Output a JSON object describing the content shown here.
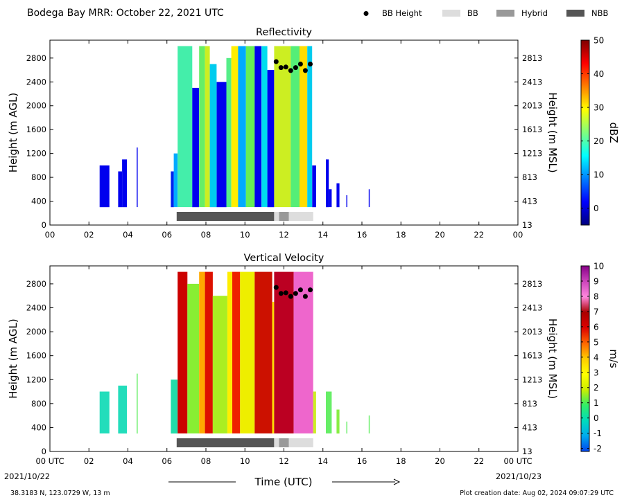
{
  "header": {
    "title": "Bodega Bay MRR:  October 22, 2021 UTC",
    "legend": [
      {
        "label": "BB Height",
        "kind": "dot",
        "color": "#000000"
      },
      {
        "label": "BB",
        "kind": "swatch",
        "color": "#dddddd"
      },
      {
        "label": "Hybrid",
        "kind": "swatch",
        "color": "#999999"
      },
      {
        "label": "NBB",
        "kind": "swatch",
        "color": "#555555"
      }
    ]
  },
  "footer": {
    "coords": "38.3183 N, 123.0729 W, 13 m",
    "created": "Plot creation date: Aug 02, 2024 09:07:29 UTC",
    "xlabel": "Time (UTC)",
    "start_date": "2021/10/22",
    "end_date": "2021/10/23"
  },
  "chart_data": [
    {
      "type": "heatmap",
      "title": "Reflectivity",
      "xlabel": "",
      "ylabel": "Height (m AGL)",
      "ylabel_right": "Height (m MSL)",
      "x_range_hours": [
        0,
        24
      ],
      "xticks": [
        "00",
        "02",
        "04",
        "06",
        "08",
        "10",
        "12",
        "14",
        "16",
        "18",
        "20",
        "22",
        "00"
      ],
      "ylim": [
        0,
        3100
      ],
      "yticks": [
        0,
        400,
        800,
        1200,
        1600,
        2000,
        2400,
        2800
      ],
      "yticks_right": [
        "13",
        "413",
        "813",
        "1213",
        "1613",
        "2013",
        "2413",
        "2813"
      ],
      "colorbar": {
        "label": "dBZ",
        "min": -5,
        "max": 50,
        "ticks": [
          0,
          10,
          20,
          30,
          40,
          50
        ],
        "colors": [
          "#00007f",
          "#0000ff",
          "#007fff",
          "#00ffff",
          "#7fff7f",
          "#ffff00",
          "#ff7f00",
          "#ff0000",
          "#7f0000"
        ]
      },
      "echo_columns": [
        {
          "start": 2.55,
          "end": 3.05,
          "top": 1000,
          "color": "#0000ee"
        },
        {
          "start": 3.5,
          "end": 3.7,
          "top": 900,
          "color": "#0000ee"
        },
        {
          "start": 3.7,
          "end": 3.95,
          "top": 1100,
          "color": "#0000ee"
        },
        {
          "start": 4.45,
          "end": 4.5,
          "top": 1300,
          "color": "#0000ee"
        },
        {
          "start": 6.2,
          "end": 6.35,
          "top": 900,
          "color": "#0022ee"
        },
        {
          "start": 6.35,
          "end": 6.55,
          "top": 1200,
          "color": "#00aaff"
        },
        {
          "start": 6.55,
          "end": 7.3,
          "top": 3000,
          "color": "#44eeaa"
        },
        {
          "start": 7.3,
          "end": 7.65,
          "top": 2300,
          "color": "#0000ee"
        },
        {
          "start": 7.65,
          "end": 7.95,
          "top": 3000,
          "color": "#66ee66"
        },
        {
          "start": 7.95,
          "end": 8.2,
          "top": 3000,
          "color": "#ccee22"
        },
        {
          "start": 8.2,
          "end": 8.55,
          "top": 2700,
          "color": "#00ccee"
        },
        {
          "start": 8.55,
          "end": 9.05,
          "top": 2400,
          "color": "#0000ee"
        },
        {
          "start": 9.05,
          "end": 9.3,
          "top": 2800,
          "color": "#55ee88"
        },
        {
          "start": 9.3,
          "end": 9.65,
          "top": 3000,
          "color": "#ffee00"
        },
        {
          "start": 9.65,
          "end": 10.05,
          "top": 3000,
          "color": "#00aaff"
        },
        {
          "start": 10.05,
          "end": 10.5,
          "top": 3000,
          "color": "#66ee55"
        },
        {
          "start": 10.5,
          "end": 10.85,
          "top": 3000,
          "color": "#0000ee"
        },
        {
          "start": 10.85,
          "end": 11.15,
          "top": 3000,
          "color": "#00ddee"
        },
        {
          "start": 11.15,
          "end": 11.5,
          "top": 2600,
          "color": "#0000ee"
        },
        {
          "start": 11.5,
          "end": 12.35,
          "top": 3000,
          "color": "#ccee22"
        },
        {
          "start": 12.35,
          "end": 12.8,
          "top": 3000,
          "color": "#55ee77"
        },
        {
          "start": 12.8,
          "end": 13.2,
          "top": 3000,
          "color": "#ffdd00"
        },
        {
          "start": 13.2,
          "end": 13.45,
          "top": 3000,
          "color": "#00ccee"
        },
        {
          "start": 13.45,
          "end": 13.65,
          "top": 1000,
          "color": "#0000ee"
        },
        {
          "start": 14.15,
          "end": 14.3,
          "top": 1100,
          "color": "#0000ee"
        },
        {
          "start": 14.3,
          "end": 14.45,
          "top": 600,
          "color": "#0000ee"
        },
        {
          "start": 14.7,
          "end": 14.85,
          "top": 700,
          "color": "#0000ee"
        },
        {
          "start": 15.2,
          "end": 15.25,
          "top": 500,
          "color": "#0000ee"
        },
        {
          "start": 16.35,
          "end": 16.4,
          "top": 600,
          "color": "#0000ee"
        }
      ]
    },
    {
      "type": "heatmap",
      "title": "Vertical Velocity",
      "xlabel": "Time (UTC)",
      "ylabel": "Height (m AGL)",
      "ylabel_right": "Height (m MSL)",
      "x_range_hours": [
        0,
        24
      ],
      "xticks": [
        "00 UTC",
        "02",
        "04",
        "06",
        "08",
        "10",
        "12",
        "14",
        "16",
        "18",
        "20",
        "22",
        "00 UTC"
      ],
      "ylim": [
        0,
        3100
      ],
      "yticks": [
        0,
        400,
        800,
        1200,
        1600,
        2000,
        2400,
        2800
      ],
      "yticks_right": [
        "13",
        "413",
        "813",
        "1213",
        "1613",
        "2013",
        "2413",
        "2813"
      ],
      "colorbar": {
        "label": "m/s",
        "min": -2.2,
        "max": 10,
        "ticks": [
          -2,
          -1,
          0,
          1,
          2,
          3,
          4,
          5,
          6,
          7,
          8,
          9,
          10
        ],
        "colors": [
          "#0044ee",
          "#00aaee",
          "#00ddbb",
          "#33ee66",
          "#ccee00",
          "#ffff00",
          "#ffcc00",
          "#ff6600",
          "#dd0000",
          "#aa0000",
          "#ff88dd",
          "#cc44bb",
          "#880088"
        ]
      },
      "echo_columns": [
        {
          "start": 2.55,
          "end": 3.05,
          "top": 1000,
          "color": "#22ddbb"
        },
        {
          "start": 3.5,
          "end": 3.95,
          "top": 1100,
          "color": "#22ddbb"
        },
        {
          "start": 4.45,
          "end": 4.5,
          "top": 1300,
          "color": "#66ee66"
        },
        {
          "start": 6.2,
          "end": 6.55,
          "top": 1200,
          "color": "#22ddaa"
        },
        {
          "start": 6.55,
          "end": 7.05,
          "top": 3000,
          "color": "#cc0000"
        },
        {
          "start": 7.05,
          "end": 7.65,
          "top": 2800,
          "color": "#88ee33"
        },
        {
          "start": 7.65,
          "end": 7.95,
          "top": 3000,
          "color": "#ffaa00"
        },
        {
          "start": 7.95,
          "end": 8.35,
          "top": 3000,
          "color": "#dd1100"
        },
        {
          "start": 8.35,
          "end": 9.1,
          "top": 2600,
          "color": "#aaee22"
        },
        {
          "start": 9.1,
          "end": 9.35,
          "top": 3000,
          "color": "#ffee00"
        },
        {
          "start": 9.35,
          "end": 9.75,
          "top": 3000,
          "color": "#ee2200"
        },
        {
          "start": 9.75,
          "end": 10.5,
          "top": 3000,
          "color": "#eeee00"
        },
        {
          "start": 10.5,
          "end": 11.4,
          "top": 3000,
          "color": "#cc1100"
        },
        {
          "start": 11.4,
          "end": 11.5,
          "top": 2500,
          "color": "#ffdd00"
        },
        {
          "start": 11.5,
          "end": 12.5,
          "top": 3000,
          "color": "#bb0022"
        },
        {
          "start": 12.5,
          "end": 13.5,
          "top": 3000,
          "color": "#ee66cc"
        },
        {
          "start": 13.5,
          "end": 13.65,
          "top": 1000,
          "color": "#ccee22"
        },
        {
          "start": 14.15,
          "end": 14.45,
          "top": 1000,
          "color": "#66ee66"
        },
        {
          "start": 14.7,
          "end": 14.85,
          "top": 700,
          "color": "#88ee44"
        },
        {
          "start": 15.2,
          "end": 15.25,
          "top": 500,
          "color": "#66ee66"
        },
        {
          "start": 16.35,
          "end": 16.4,
          "top": 600,
          "color": "#66ee66"
        }
      ]
    }
  ],
  "bb_height_points": [
    {
      "x": 11.6,
      "y": 2740
    },
    {
      "x": 11.85,
      "y": 2640
    },
    {
      "x": 12.1,
      "y": 2650
    },
    {
      "x": 12.35,
      "y": 2590
    },
    {
      "x": 12.6,
      "y": 2640
    },
    {
      "x": 12.85,
      "y": 2700
    },
    {
      "x": 13.1,
      "y": 2590
    },
    {
      "x": 13.35,
      "y": 2700
    }
  ],
  "bb_category_strip": [
    {
      "start": 6.5,
      "end": 11.5,
      "category": "NBB",
      "color": "#555555"
    },
    {
      "start": 11.5,
      "end": 11.75,
      "category": "BB",
      "color": "#dddddd"
    },
    {
      "start": 11.75,
      "end": 12.25,
      "category": "Hybrid",
      "color": "#999999"
    },
    {
      "start": 12.25,
      "end": 13.5,
      "category": "BB",
      "color": "#dddddd"
    }
  ]
}
